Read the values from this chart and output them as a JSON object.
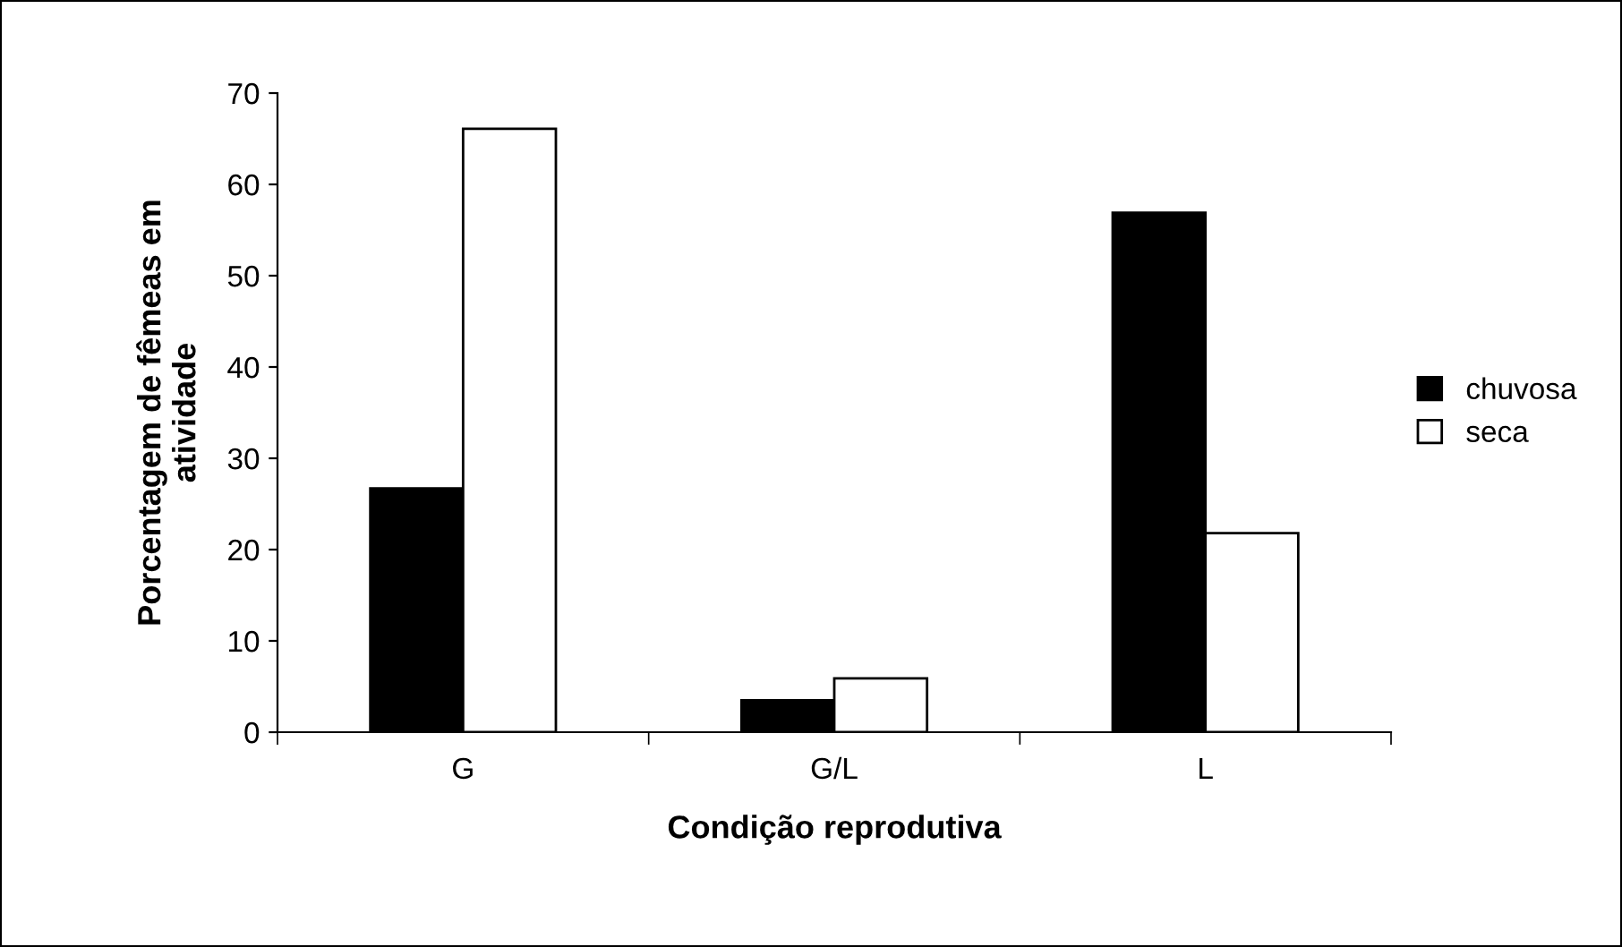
{
  "chart_data": {
    "type": "bar",
    "xlabel": "Condição reprodutiva",
    "ylabel": "Porcentagem de fêmeas em\natividade",
    "categories": [
      "G",
      "G/L",
      "L"
    ],
    "series": [
      {
        "name": "chuvosa",
        "color": "#000000",
        "values": [
          26.7,
          3.5,
          56.9
        ]
      },
      {
        "name": "seca",
        "color": "#ffffff",
        "values": [
          66.1,
          5.9,
          21.8
        ]
      }
    ],
    "ylim": [
      0,
      70
    ],
    "yticks": [
      0,
      10,
      20,
      30,
      40,
      50,
      60,
      70
    ],
    "grid": false,
    "legend": "right"
  }
}
